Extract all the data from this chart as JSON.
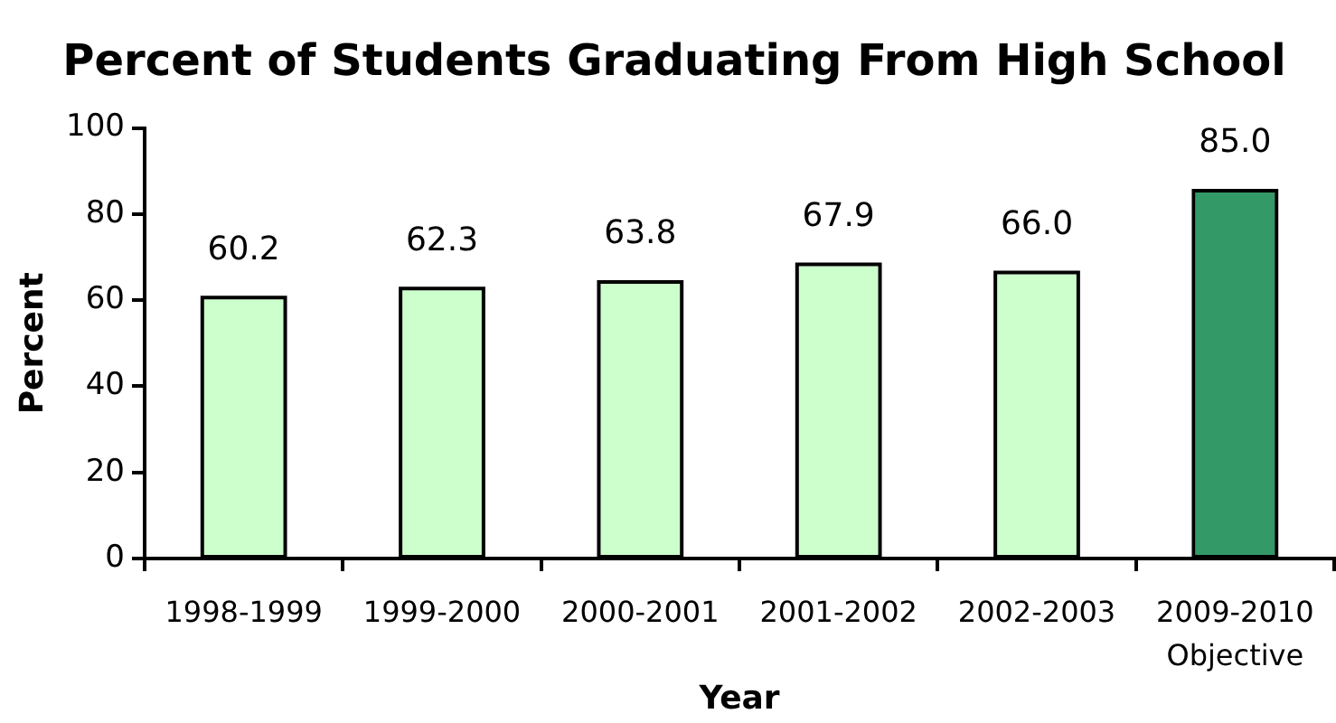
{
  "chart_data": {
    "type": "bar",
    "title": "Percent of Students Graduating From High School",
    "xlabel": "Year",
    "ylabel": "Percent",
    "categories": [
      "1998-1999",
      "1999-2000",
      "2000-2001",
      "2001-2002",
      "2002-2003",
      "2009-2010 Objective"
    ],
    "values": [
      60.2,
      62.3,
      63.8,
      67.9,
      66.0,
      85.0
    ],
    "value_labels": [
      "60.2",
      "62.3",
      "63.8",
      "67.9",
      "66.0",
      "85.0"
    ],
    "colors": [
      "#ccffcc",
      "#ccffcc",
      "#ccffcc",
      "#ccffcc",
      "#ccffcc",
      "#339966"
    ],
    "ylim": [
      0,
      100
    ],
    "yticks": [
      0,
      20,
      40,
      60,
      80,
      100
    ],
    "grid": false,
    "legend": false
  }
}
